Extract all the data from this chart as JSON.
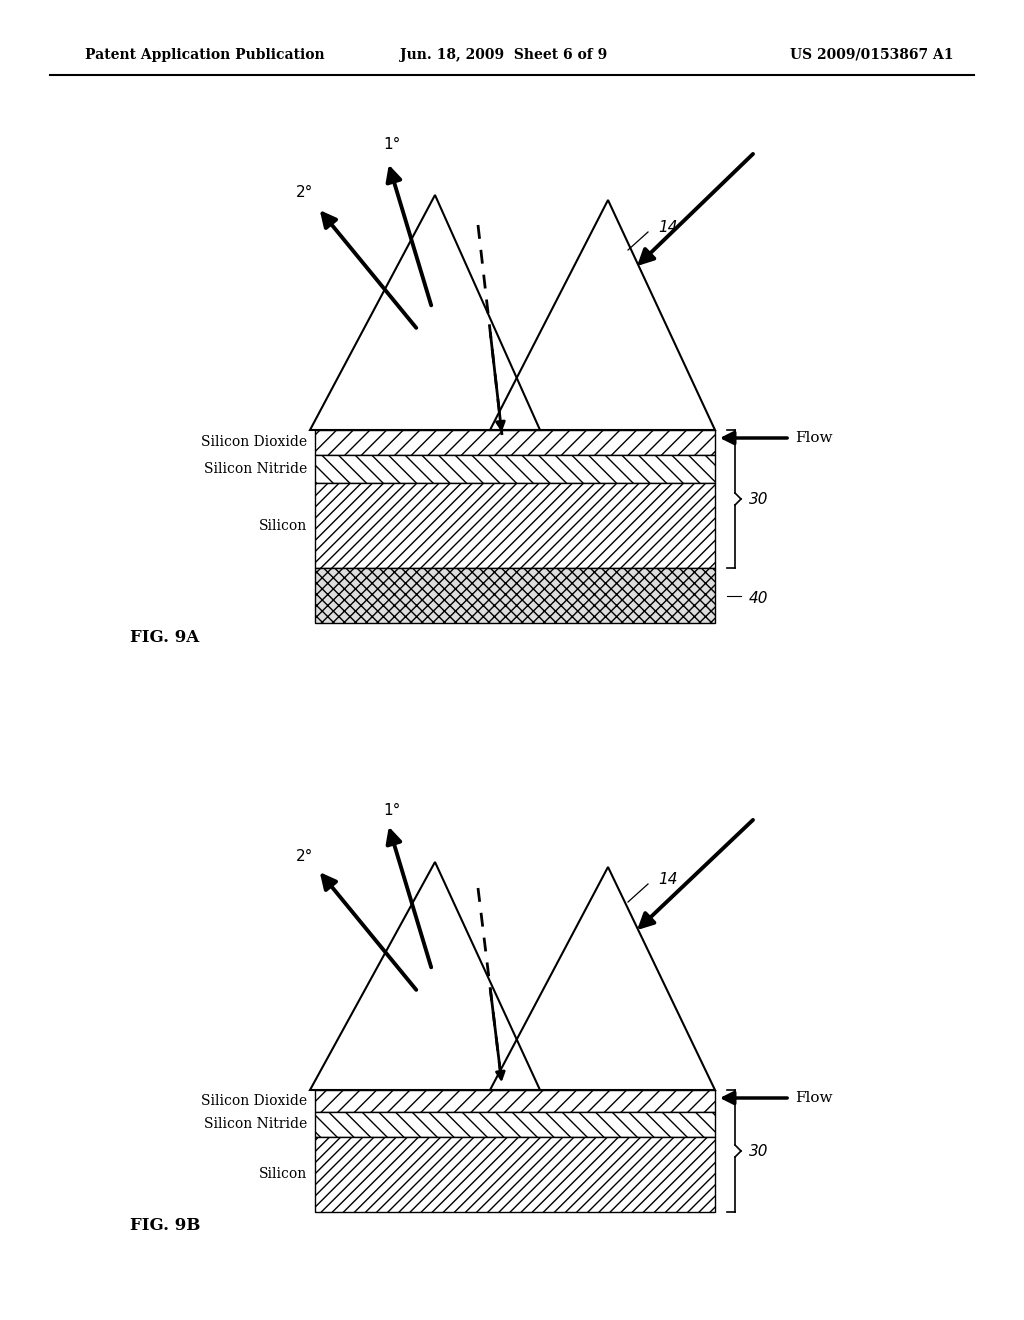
{
  "bg_color": "#ffffff",
  "header_left": "Patent Application Publication",
  "header_center": "Jun. 18, 2009  Sheet 6 of 9",
  "header_right": "US 2009/0153867 A1",
  "fig9a_label": "FIG. 9A",
  "fig9b_label": "FIG. 9B",
  "layer_labels_a": [
    "Silicon Dioxide",
    "Silicon Nitride",
    "Silicon"
  ],
  "layer_labels_b": [
    "Silicon Dioxide",
    "Silicon Nitride",
    "Silicon"
  ],
  "label_14": "14",
  "label_30a": "30",
  "label_40": "40",
  "label_30b": "30",
  "flow_label": "Flow"
}
